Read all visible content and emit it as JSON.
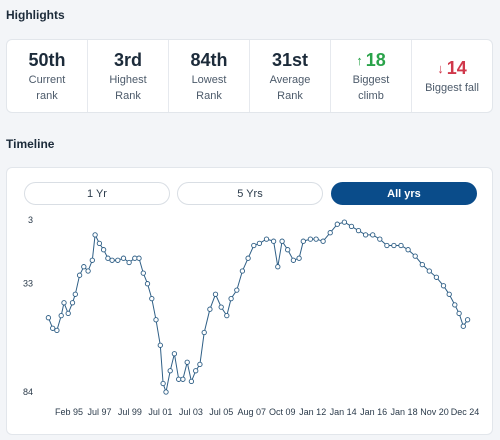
{
  "highlights": {
    "title": "Highlights",
    "stats": [
      {
        "value": "50th",
        "label1": "Current",
        "label2": "rank"
      },
      {
        "value": "3rd",
        "label1": "Highest",
        "label2": "Rank"
      },
      {
        "value": "84th",
        "label1": "Lowest",
        "label2": "Rank"
      },
      {
        "value": "31st",
        "label1": "Average",
        "label2": "Rank"
      },
      {
        "value": "18",
        "arrow": "↑",
        "label1": "Biggest",
        "label2": "climb"
      },
      {
        "value": "14",
        "arrow": "↓",
        "label1": "Biggest fall",
        "label2": ""
      }
    ]
  },
  "timeline": {
    "title": "Timeline",
    "tabs": [
      "1 Yr",
      "5 Yrs",
      "All yrs"
    ],
    "active_tab": "All yrs"
  },
  "colors": {
    "accent": "#0a4c8a",
    "climb": "#2aa34a",
    "fall": "#d0384b",
    "line": "#2f5f86"
  },
  "chart_data": {
    "type": "line",
    "title": "",
    "xlabel": "",
    "ylabel": "",
    "y_reversed": true,
    "ylim": [
      3,
      84
    ],
    "yticks": [
      3,
      33,
      84
    ],
    "x_tick_labels": [
      "Feb 95",
      "Jul 97",
      "Jul 99",
      "Jul 01",
      "Jul 03",
      "Jul 05",
      "Aug 07",
      "Oct 09",
      "Jan 12",
      "Jan 14",
      "Jan 16",
      "Jan 18",
      "Nov 20",
      "Dec 24"
    ],
    "series": [
      {
        "values": [
          [
            1995.1,
            49
          ],
          [
            1995.4,
            54
          ],
          [
            1995.7,
            55
          ],
          [
            1996.0,
            48
          ],
          [
            1996.2,
            42
          ],
          [
            1996.5,
            47
          ],
          [
            1996.8,
            42
          ],
          [
            1997.0,
            38
          ],
          [
            1997.3,
            29
          ],
          [
            1997.6,
            25
          ],
          [
            1997.9,
            27
          ],
          [
            1998.2,
            22
          ],
          [
            1998.4,
            10
          ],
          [
            1998.7,
            14
          ],
          [
            1999.0,
            17
          ],
          [
            1999.3,
            21
          ],
          [
            1999.6,
            22
          ],
          [
            2000.0,
            22
          ],
          [
            2000.4,
            21
          ],
          [
            2000.8,
            23
          ],
          [
            2001.2,
            21
          ],
          [
            2001.5,
            21
          ],
          [
            2001.8,
            28
          ],
          [
            2002.1,
            33
          ],
          [
            2002.4,
            40
          ],
          [
            2002.7,
            50
          ],
          [
            2003.0,
            62
          ],
          [
            2003.2,
            80
          ],
          [
            2003.4,
            84
          ],
          [
            2003.7,
            74
          ],
          [
            2004.0,
            66
          ],
          [
            2004.3,
            78
          ],
          [
            2004.6,
            78
          ],
          [
            2004.9,
            70
          ],
          [
            2005.2,
            79
          ],
          [
            2005.5,
            74
          ],
          [
            2005.8,
            71
          ],
          [
            2006.1,
            56
          ],
          [
            2006.5,
            45
          ],
          [
            2006.9,
            38
          ],
          [
            2007.3,
            44
          ],
          [
            2007.7,
            48
          ],
          [
            2008.0,
            40
          ],
          [
            2008.4,
            36
          ],
          [
            2008.8,
            27
          ],
          [
            2009.2,
            21
          ],
          [
            2009.6,
            15
          ],
          [
            2010.0,
            14
          ],
          [
            2010.5,
            12
          ],
          [
            2011.0,
            13
          ],
          [
            2011.3,
            25
          ],
          [
            2011.6,
            13
          ],
          [
            2012.0,
            17
          ],
          [
            2012.4,
            22
          ],
          [
            2012.8,
            21
          ],
          [
            2013.1,
            13
          ],
          [
            2013.6,
            12
          ],
          [
            2014.0,
            12
          ],
          [
            2014.5,
            13
          ],
          [
            2015.0,
            9
          ],
          [
            2015.5,
            5
          ],
          [
            2016.0,
            4
          ],
          [
            2016.5,
            6
          ],
          [
            2017.0,
            8
          ],
          [
            2017.5,
            10
          ],
          [
            2018.0,
            10
          ],
          [
            2018.5,
            12
          ],
          [
            2019.0,
            15
          ],
          [
            2019.5,
            15
          ],
          [
            2020.0,
            15
          ],
          [
            2020.5,
            17
          ],
          [
            2021.0,
            20
          ],
          [
            2021.5,
            24
          ],
          [
            2022.0,
            27
          ],
          [
            2022.5,
            30
          ],
          [
            2023.0,
            34
          ],
          [
            2023.4,
            38
          ],
          [
            2023.8,
            43
          ],
          [
            2024.1,
            47
          ],
          [
            2024.4,
            53
          ],
          [
            2024.7,
            50
          ]
        ]
      }
    ]
  }
}
